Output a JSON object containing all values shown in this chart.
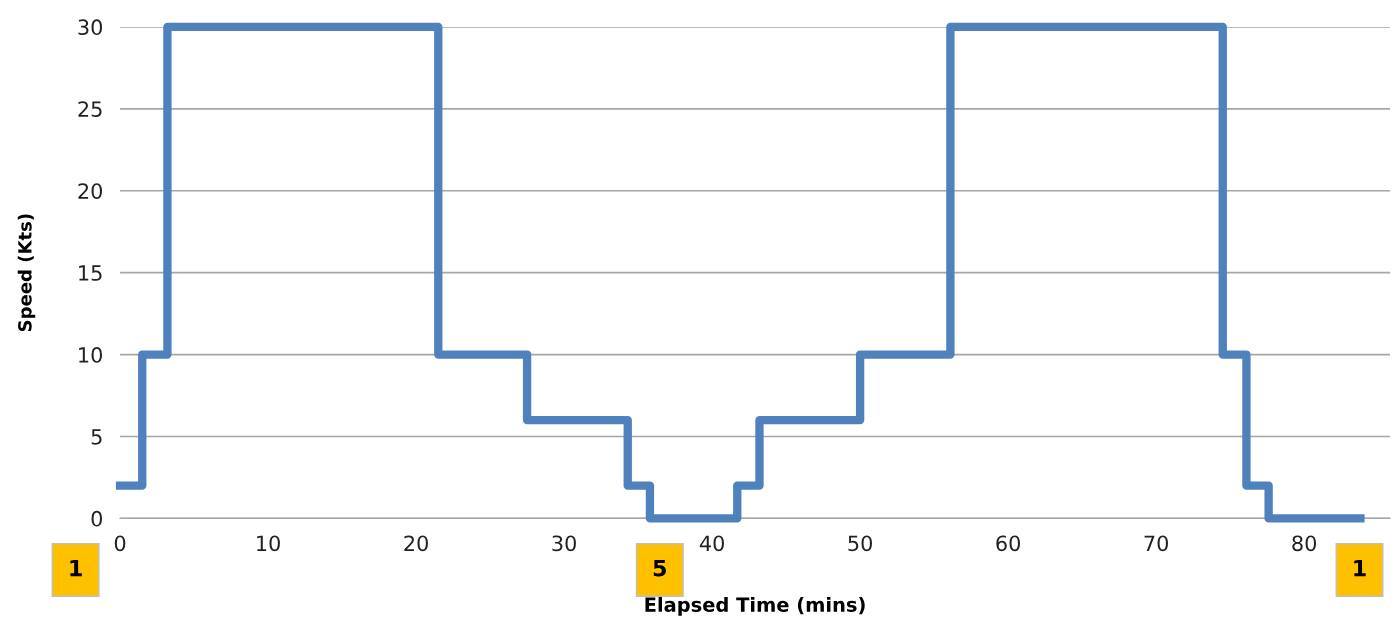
{
  "chart_data": {
    "type": "step",
    "xlabel": "Elapsed Time (mins)",
    "ylabel": "Speed (Kts)",
    "x": [
      0,
      1.5,
      3.2,
      21.5,
      27.5,
      34.3,
      35.8,
      41.7,
      43.2,
      50,
      56.1,
      74.5,
      76.1,
      77.6,
      83.8
    ],
    "series": [
      {
        "color": "#4f81bd",
        "values": [
          2,
          10,
          30,
          10,
          6,
          2,
          0,
          2,
          6,
          10,
          30,
          10,
          2,
          0,
          0
        ]
      }
    ],
    "xlim": [
      0,
      85.8
    ],
    "xticks": [
      0,
      10,
      20,
      30,
      40,
      50,
      60,
      70,
      80
    ],
    "ylim": [
      0,
      30
    ],
    "yticks": [
      0,
      5,
      10,
      15,
      20,
      25,
      30
    ],
    "grid": "y",
    "annotations": [
      "1",
      "5",
      "1"
    ]
  }
}
